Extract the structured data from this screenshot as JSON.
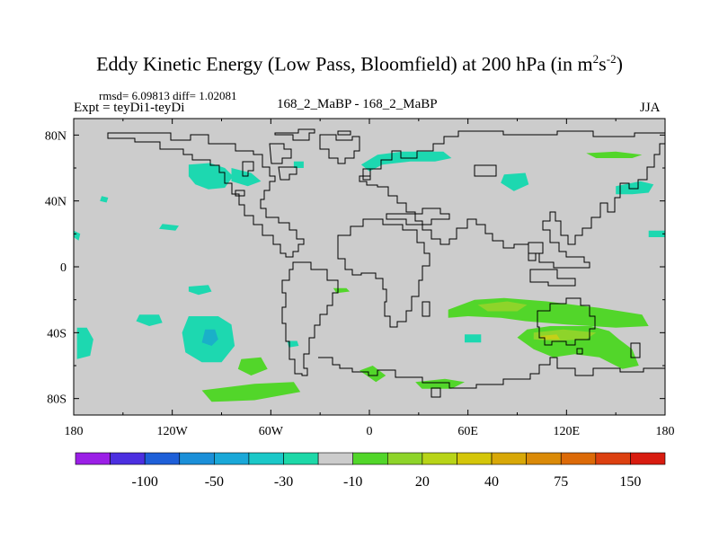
{
  "title": {
    "text": "Eddy Kinetic Energy (Low Pass, Bloomfield) at 200 hPa (in m",
    "sup1": "2",
    "mid": "s",
    "sup2": "-2",
    "end": ")"
  },
  "stats": "rmsd= 6.09813 diff= 1.02081",
  "left_label": "Expt = teyDi1-teyDi",
  "center_label": "168_2_MaBP - 168_2_MaBP",
  "season": "JJA",
  "chart_data": {
    "type": "heatmap",
    "title": "Eddy Kinetic Energy (Low Pass, Bloomfield) at 200 hPa (in m2s-2)",
    "subtitle": "168_2_MaBP - 168_2_MaBP",
    "projection": "cylindrical equidistant",
    "xlim": [
      -180,
      180
    ],
    "ylim": [
      -90,
      90
    ],
    "x_ticks": [
      {
        "value": -180,
        "label": "180"
      },
      {
        "value": -120,
        "label": "120W"
      },
      {
        "value": -60,
        "label": "60W"
      },
      {
        "value": 0,
        "label": "0"
      },
      {
        "value": 60,
        "label": "60E"
      },
      {
        "value": 120,
        "label": "120E"
      },
      {
        "value": 180,
        "label": "180"
      }
    ],
    "y_ticks": [
      {
        "value": 80,
        "label": "80N"
      },
      {
        "value": 40,
        "label": "40N"
      },
      {
        "value": 0,
        "label": "0"
      },
      {
        "value": -40,
        "label": "40S"
      },
      {
        "value": -80,
        "label": "80S"
      }
    ],
    "background_color": "#cccccc",
    "colorbar": {
      "colors": [
        "#9b1fe6",
        "#4c2fe0",
        "#1e5fd8",
        "#1b8fd8",
        "#1aa8d8",
        "#1bc8c8",
        "#1dd8a8",
        "#cccccc",
        "#52d62a",
        "#8ed42a",
        "#b8d418",
        "#d4c60a",
        "#d8a808",
        "#da8a08",
        "#dc6a08",
        "#dc4010",
        "#d81c10"
      ],
      "labels": [
        "-100",
        "-50",
        "-30",
        "-10",
        "20",
        "40",
        "75",
        "150"
      ]
    },
    "regions": [
      {
        "value": -15,
        "color": "#1dd8b0",
        "points": [
          [
            -110,
            -30
          ],
          [
            -92,
            -30
          ],
          [
            -84,
            -35
          ],
          [
            -82,
            -48
          ],
          [
            -90,
            -58
          ],
          [
            -102,
            -58
          ],
          [
            -112,
            -52
          ],
          [
            -114,
            -40
          ]
        ]
      },
      {
        "value": -30,
        "color": "#1ab0c8",
        "points": [
          [
            -100,
            -38
          ],
          [
            -94,
            -38
          ],
          [
            -92,
            -44
          ],
          [
            -96,
            -48
          ],
          [
            -102,
            -46
          ]
        ]
      },
      {
        "value": -15,
        "color": "#1dd8b0",
        "points": [
          [
            -178,
            -37
          ],
          [
            -172,
            -37
          ],
          [
            -168,
            -44
          ],
          [
            -170,
            -54
          ],
          [
            -178,
            -56
          ]
        ]
      },
      {
        "value": -15,
        "color": "#1dd8b0",
        "points": [
          [
            -140,
            -29
          ],
          [
            -128,
            -29
          ],
          [
            -126,
            -34
          ],
          [
            -134,
            -36
          ],
          [
            -142,
            -33
          ]
        ]
      },
      {
        "value": -15,
        "color": "#1dd8b0",
        "points": [
          [
            -50,
            -45
          ],
          [
            -44,
            -45
          ],
          [
            -43,
            -48
          ],
          [
            -49,
            -49
          ]
        ]
      },
      {
        "value": -15,
        "color": "#1dd8b0",
        "points": [
          [
            -110,
            -12
          ],
          [
            -98,
            -11
          ],
          [
            -96,
            -15
          ],
          [
            -104,
            -17
          ],
          [
            -110,
            -15
          ]
        ]
      },
      {
        "value": -15,
        "color": "#1dd8b0",
        "points": [
          [
            -128,
            23
          ],
          [
            -118,
            22
          ],
          [
            -116,
            25
          ],
          [
            -126,
            26
          ]
        ]
      },
      {
        "value": -15,
        "color": "#1dd8b0",
        "points": [
          [
            -180,
            22
          ],
          [
            -176,
            20
          ],
          [
            -177,
            16
          ],
          [
            -180,
            18
          ]
        ]
      },
      {
        "value": -15,
        "color": "#1dd8b0",
        "points": [
          [
            -163,
            43
          ],
          [
            -159,
            42
          ],
          [
            -160,
            39
          ],
          [
            -164,
            40
          ]
        ]
      },
      {
        "value": -15,
        "color": "#1dd8b0",
        "points": [
          [
            -110,
            62
          ],
          [
            -97,
            63
          ],
          [
            -88,
            60
          ],
          [
            -83,
            55
          ],
          [
            -88,
            48
          ],
          [
            -98,
            47
          ],
          [
            -106,
            50
          ],
          [
            -110,
            55
          ]
        ]
      },
      {
        "value": -15,
        "color": "#1dd8b0",
        "points": [
          [
            -84,
            60
          ],
          [
            -72,
            57
          ],
          [
            -66,
            52
          ],
          [
            -74,
            49
          ],
          [
            -84,
            52
          ]
        ]
      },
      {
        "value": -15,
        "color": "#1dd8b0",
        "points": [
          [
            -46,
            64
          ],
          [
            -40,
            64
          ],
          [
            -40,
            60
          ],
          [
            -46,
            60
          ]
        ]
      },
      {
        "value": -15,
        "color": "#1dd8b0",
        "points": [
          [
            -5,
            62
          ],
          [
            5,
            68
          ],
          [
            20,
            70
          ],
          [
            45,
            70
          ],
          [
            50,
            66
          ],
          [
            40,
            64
          ],
          [
            25,
            64
          ],
          [
            8,
            62
          ],
          [
            0,
            58
          ]
        ]
      },
      {
        "value": -15,
        "color": "#1dd8b0",
        "points": [
          [
            82,
            56
          ],
          [
            95,
            57
          ],
          [
            97,
            50
          ],
          [
            88,
            46
          ],
          [
            80,
            51
          ]
        ]
      },
      {
        "value": -15,
        "color": "#1dd8b0",
        "points": [
          [
            150,
            49
          ],
          [
            165,
            52
          ],
          [
            173,
            50
          ],
          [
            170,
            45
          ],
          [
            160,
            44
          ],
          [
            150,
            44
          ]
        ]
      },
      {
        "value": -15,
        "color": "#1dd8b0",
        "points": [
          [
            170,
            22
          ],
          [
            180,
            22
          ],
          [
            180,
            18
          ],
          [
            170,
            18
          ]
        ]
      },
      {
        "value": -15,
        "color": "#1dd8b0",
        "points": [
          [
            58,
            -41
          ],
          [
            68,
            -41
          ],
          [
            68,
            -46
          ],
          [
            58,
            -46
          ]
        ]
      },
      {
        "value": -15,
        "color": "#1dd8b0",
        "points": [
          [
            126,
            -42
          ],
          [
            134,
            -42
          ],
          [
            134,
            -46
          ],
          [
            126,
            -46
          ]
        ]
      },
      {
        "value": -15,
        "color": "#1dd8b0",
        "points": [
          [
            108,
            -38
          ],
          [
            112,
            -38
          ],
          [
            112,
            -41
          ],
          [
            108,
            -41
          ]
        ]
      },
      {
        "value": 15,
        "color": "#52d62a",
        "points": [
          [
            -102,
            -75
          ],
          [
            -70,
            -71
          ],
          [
            -46,
            -70
          ],
          [
            -42,
            -76
          ],
          [
            -70,
            -81
          ],
          [
            -96,
            -82
          ]
        ]
      },
      {
        "value": 15,
        "color": "#52d62a",
        "points": [
          [
            -78,
            -56
          ],
          [
            -66,
            -55
          ],
          [
            -62,
            -62
          ],
          [
            -72,
            -66
          ],
          [
            -80,
            -62
          ]
        ]
      },
      {
        "value": 15,
        "color": "#52d62a",
        "points": [
          [
            -6,
            -63
          ],
          [
            2,
            -60
          ],
          [
            10,
            -66
          ],
          [
            4,
            -70
          ]
        ]
      },
      {
        "value": 15,
        "color": "#52d62a",
        "points": [
          [
            28,
            -70
          ],
          [
            46,
            -68
          ],
          [
            58,
            -70
          ],
          [
            50,
            -74
          ],
          [
            32,
            -74
          ]
        ]
      },
      {
        "value": 15,
        "color": "#52d62a",
        "points": [
          [
            48,
            -26
          ],
          [
            64,
            -20
          ],
          [
            82,
            -19
          ],
          [
            108,
            -21
          ],
          [
            140,
            -25
          ],
          [
            166,
            -29
          ],
          [
            170,
            -36
          ],
          [
            150,
            -37
          ],
          [
            120,
            -35
          ],
          [
            95,
            -33
          ],
          [
            80,
            -31
          ],
          [
            60,
            -30
          ],
          [
            48,
            -31
          ]
        ]
      },
      {
        "value": 15,
        "color": "#52d62a",
        "points": [
          [
            96,
            -38
          ],
          [
            110,
            -36
          ],
          [
            135,
            -36
          ],
          [
            146,
            -39
          ],
          [
            152,
            -44
          ],
          [
            160,
            -50
          ],
          [
            164,
            -60
          ],
          [
            154,
            -62
          ],
          [
            140,
            -55
          ],
          [
            125,
            -53
          ],
          [
            112,
            -55
          ],
          [
            100,
            -50
          ],
          [
            90,
            -43
          ]
        ]
      },
      {
        "value": 15,
        "color": "#52d62a",
        "points": [
          [
            110,
            -26
          ],
          [
            122,
            -24
          ],
          [
            130,
            -27
          ],
          [
            124,
            -30
          ],
          [
            112,
            -30
          ]
        ]
      },
      {
        "value": 15,
        "color": "#52d62a",
        "points": [
          [
            -22,
            -13
          ],
          [
            -14,
            -13
          ],
          [
            -12,
            -15
          ],
          [
            -20,
            -16
          ]
        ]
      },
      {
        "value": 15,
        "color": "#52d62a",
        "points": [
          [
            132,
            69
          ],
          [
            150,
            70
          ],
          [
            166,
            68
          ],
          [
            160,
            66
          ],
          [
            138,
            66
          ]
        ]
      },
      {
        "value": 30,
        "color": "#8ed42a",
        "points": [
          [
            100,
            -40
          ],
          [
            118,
            -38
          ],
          [
            138,
            -40
          ],
          [
            132,
            -44
          ],
          [
            112,
            -45
          ],
          [
            100,
            -44
          ]
        ]
      },
      {
        "value": 30,
        "color": "#8ed42a",
        "points": [
          [
            66,
            -23
          ],
          [
            84,
            -21
          ],
          [
            96,
            -23
          ],
          [
            90,
            -27
          ],
          [
            72,
            -27
          ]
        ]
      },
      {
        "value": 45,
        "color": "#c4d018",
        "points": [
          [
            104,
            -42
          ],
          [
            114,
            -41
          ],
          [
            116,
            -44
          ],
          [
            106,
            -44
          ]
        ]
      }
    ]
  }
}
